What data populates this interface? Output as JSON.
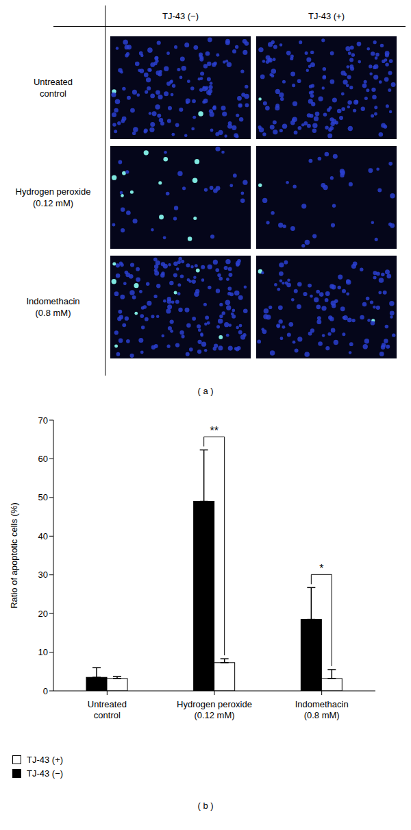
{
  "panel_a": {
    "label": "( a )",
    "columns": [
      "TJ-43 (−)",
      "TJ-43 (+)"
    ],
    "rows": [
      "Untreated control",
      "Hydrogen peroxide (0.12 mM)",
      "Indomethacin (0.8 mM)"
    ]
  },
  "panel_b": {
    "label": "( b )"
  },
  "chart_data": {
    "type": "bar",
    "categories": [
      "Untreated control",
      "Hydrogen peroxide (0.12 mM)",
      "Indomethacin (0.8 mM)"
    ],
    "series": [
      {
        "name": "TJ-43 (−)",
        "color": "#000000",
        "values": [
          3.5,
          49,
          18.5
        ],
        "errors": [
          2.5,
          13.3,
          8.2
        ]
      },
      {
        "name": "TJ-43 (+)",
        "color": "#ffffff",
        "values": [
          3.2,
          7.3,
          3.2
        ],
        "errors": [
          0.5,
          1,
          2.3
        ]
      }
    ],
    "ylabel": "Ratio of apoptotic cells (%)",
    "ylim": [
      0,
      70
    ],
    "yticks": [
      0,
      10,
      20,
      30,
      40,
      50,
      60,
      70
    ],
    "grid": false,
    "legend": "bottom left",
    "annotations": [
      {
        "category": "Hydrogen peroxide (0.12 mM)",
        "text": "**"
      },
      {
        "category": "Indomethacin (0.8 mM)",
        "text": "*"
      }
    ]
  }
}
